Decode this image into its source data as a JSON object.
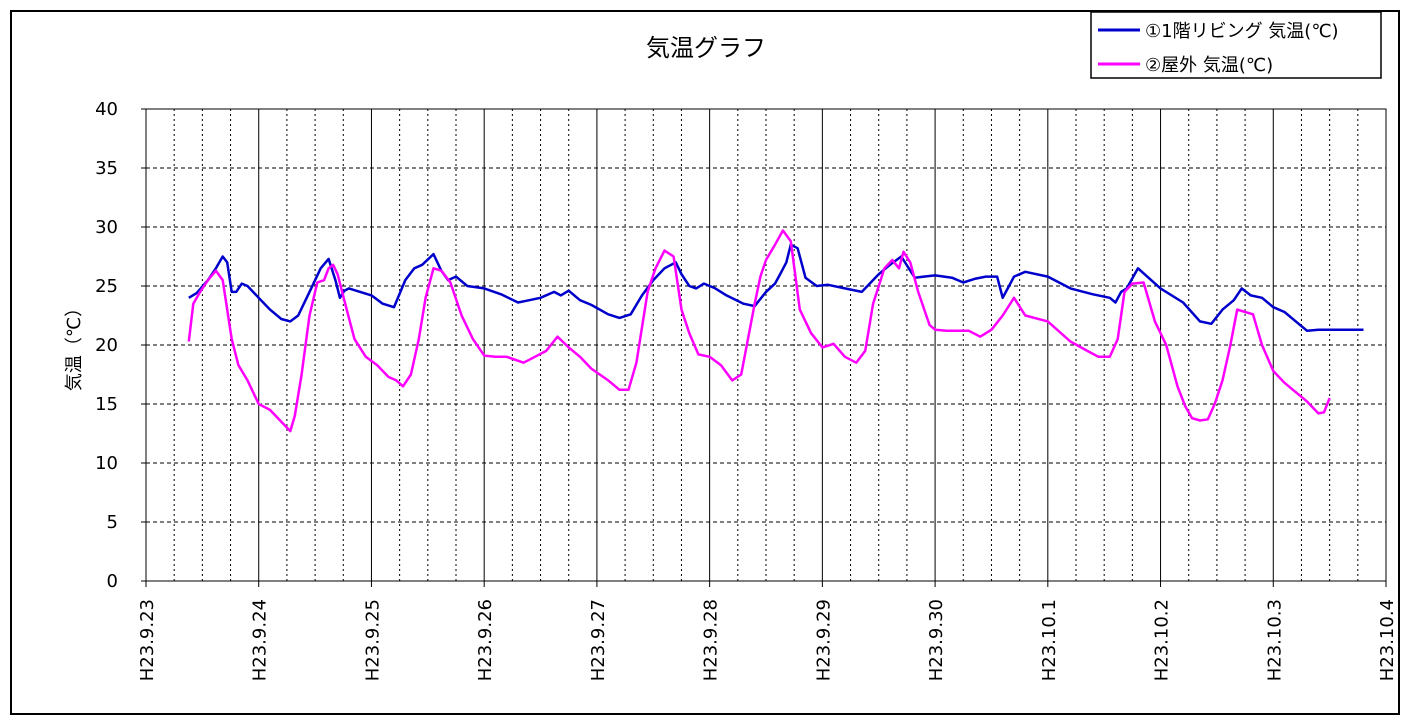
{
  "chart_data": {
    "type": "line",
    "title": "気温グラフ",
    "xlabel": "",
    "ylabel": "気温（℃）",
    "ylim": [
      0,
      40
    ],
    "yticks": [
      "0",
      "5",
      "10",
      "15",
      "20",
      "25",
      "30",
      "35",
      "40"
    ],
    "xlim": [
      0,
      11
    ],
    "x_tick_labels": [
      "H23.9.23",
      "H23.9.24",
      "H23.9.25",
      "H23.9.26",
      "H23.9.27",
      "H23.9.28",
      "H23.9.29",
      "H23.9.30",
      "H23.10.1",
      "H23.10.2",
      "H23.10.3",
      "H23.10.4"
    ],
    "x_minor_per_major": 4,
    "grid": true,
    "legend": "top-right",
    "series": [
      {
        "name": "①1階リビング 気温(℃)",
        "color": "#0000CC",
        "x": [
          0.38,
          0.45,
          0.55,
          0.62,
          0.68,
          0.72,
          0.76,
          0.8,
          0.85,
          0.9,
          1.0,
          1.1,
          1.2,
          1.28,
          1.35,
          1.45,
          1.55,
          1.62,
          1.68,
          1.72,
          1.76,
          1.8,
          1.9,
          2.0,
          2.1,
          2.2,
          2.3,
          2.38,
          2.45,
          2.55,
          2.62,
          2.68,
          2.75,
          2.85,
          3.0,
          3.15,
          3.3,
          3.4,
          3.5,
          3.62,
          3.68,
          3.75,
          3.85,
          3.95,
          4.1,
          4.2,
          4.3,
          4.4,
          4.5,
          4.6,
          4.7,
          4.75,
          4.82,
          4.88,
          4.95,
          5.05,
          5.15,
          5.3,
          5.4,
          5.5,
          5.58,
          5.62,
          5.68,
          5.72,
          5.78,
          5.85,
          5.95,
          6.05,
          6.2,
          6.35,
          6.5,
          6.6,
          6.7,
          6.78,
          6.82,
          6.9,
          7.0,
          7.15,
          7.25,
          7.35,
          7.45,
          7.55,
          7.6,
          7.7,
          7.8,
          8.0,
          8.2,
          8.4,
          8.55,
          8.6,
          8.65,
          8.7,
          8.8,
          9.0,
          9.2,
          9.35,
          9.45,
          9.55,
          9.65,
          9.72,
          9.8,
          9.9,
          10.0,
          10.1,
          10.2,
          10.3,
          10.4,
          10.5,
          10.6,
          10.7,
          10.75,
          10.8
        ],
        "y": [
          24.0,
          24.4,
          25.5,
          26.5,
          27.5,
          27.0,
          24.5,
          24.5,
          25.2,
          25.0,
          24.0,
          23.0,
          22.2,
          22.0,
          22.5,
          24.5,
          26.5,
          27.3,
          25.5,
          24.0,
          24.6,
          24.8,
          24.5,
          24.2,
          23.5,
          23.2,
          25.5,
          26.5,
          26.8,
          27.7,
          26.3,
          25.5,
          25.8,
          25.0,
          24.8,
          24.3,
          23.6,
          23.8,
          24.0,
          24.5,
          24.2,
          24.6,
          23.8,
          23.4,
          22.6,
          22.3,
          22.6,
          24.2,
          25.5,
          26.5,
          27.0,
          26.0,
          25.0,
          24.8,
          25.2,
          24.8,
          24.2,
          23.5,
          23.3,
          24.5,
          25.2,
          25.9,
          27.0,
          28.5,
          28.2,
          25.7,
          25.0,
          25.1,
          24.8,
          24.5,
          26.0,
          26.8,
          27.5,
          26.3,
          25.7,
          25.8,
          25.9,
          25.7,
          25.3,
          25.6,
          25.8,
          25.8,
          24.0,
          25.8,
          26.2,
          25.8,
          24.8,
          24.3,
          24.0,
          23.6,
          24.5,
          24.8,
          26.5,
          24.8,
          23.6,
          22.0,
          21.8,
          23.0,
          23.8,
          24.8,
          24.2,
          24.0,
          23.2,
          22.8,
          22.0,
          21.2,
          21.3,
          21.3,
          21.3,
          21.3,
          21.3,
          21.3
        ]
      },
      {
        "name": "②屋外 気温(℃)",
        "color": "#FF00FF",
        "x": [
          0.38,
          0.42,
          0.48,
          0.55,
          0.62,
          0.68,
          0.72,
          0.76,
          0.82,
          0.9,
          1.0,
          1.1,
          1.2,
          1.28,
          1.32,
          1.38,
          1.45,
          1.52,
          1.58,
          1.62,
          1.66,
          1.7,
          1.78,
          1.85,
          1.95,
          2.05,
          2.15,
          2.22,
          2.28,
          2.35,
          2.42,
          2.48,
          2.55,
          2.62,
          2.7,
          2.8,
          2.9,
          3.0,
          3.1,
          3.2,
          3.35,
          3.45,
          3.55,
          3.65,
          3.75,
          3.85,
          3.95,
          4.1,
          4.2,
          4.28,
          4.35,
          4.45,
          4.52,
          4.6,
          4.68,
          4.75,
          4.82,
          4.9,
          5.0,
          5.1,
          5.2,
          5.28,
          5.32,
          5.4,
          5.45,
          5.5,
          5.58,
          5.65,
          5.72,
          5.8,
          5.9,
          6.0,
          6.1,
          6.2,
          6.3,
          6.38,
          6.45,
          6.55,
          6.62,
          6.68,
          6.72,
          6.78,
          6.85,
          6.95,
          7.0,
          7.1,
          7.2,
          7.3,
          7.4,
          7.5,
          7.6,
          7.7,
          7.8,
          8.0,
          8.2,
          8.35,
          8.45,
          8.55,
          8.62,
          8.68,
          8.75,
          8.85,
          8.95,
          9.05,
          9.15,
          9.22,
          9.28,
          9.35,
          9.42,
          9.48,
          9.55,
          9.62,
          9.68,
          9.75,
          9.82,
          9.9,
          10.0,
          10.1,
          10.2,
          10.3,
          10.4,
          10.45,
          10.5
        ],
        "y": [
          20.3,
          23.5,
          24.5,
          25.5,
          26.3,
          25.5,
          23.0,
          20.5,
          18.3,
          17.0,
          15.0,
          14.5,
          13.5,
          12.7,
          14.0,
          17.5,
          22.5,
          25.3,
          25.5,
          26.5,
          26.8,
          26.0,
          23.0,
          20.5,
          19.0,
          18.3,
          17.3,
          17.0,
          16.5,
          17.5,
          20.5,
          24.0,
          26.5,
          26.3,
          25.3,
          22.5,
          20.5,
          19.1,
          19.0,
          19.0,
          18.5,
          19.0,
          19.5,
          20.7,
          19.8,
          19.0,
          18.0,
          17.0,
          16.2,
          16.2,
          18.5,
          24.5,
          26.5,
          28.0,
          27.5,
          23.0,
          21.0,
          19.2,
          19.0,
          18.3,
          17.0,
          17.5,
          19.5,
          23.5,
          25.8,
          27.2,
          28.5,
          29.7,
          28.8,
          23.0,
          21.0,
          19.8,
          20.1,
          19.0,
          18.5,
          19.5,
          23.5,
          26.5,
          27.2,
          26.5,
          27.9,
          27.0,
          24.5,
          21.7,
          21.3,
          21.2,
          21.2,
          21.2,
          20.7,
          21.3,
          22.5,
          24.0,
          22.5,
          22.0,
          20.3,
          19.5,
          19.0,
          19.0,
          20.5,
          24.5,
          25.2,
          25.3,
          22.0,
          20.0,
          16.5,
          14.8,
          13.8,
          13.6,
          13.7,
          15.0,
          17.0,
          20.0,
          23.0,
          22.8,
          22.6,
          20.0,
          17.8,
          16.8,
          16.0,
          15.2,
          14.2,
          14.3,
          15.5
        ]
      }
    ]
  }
}
